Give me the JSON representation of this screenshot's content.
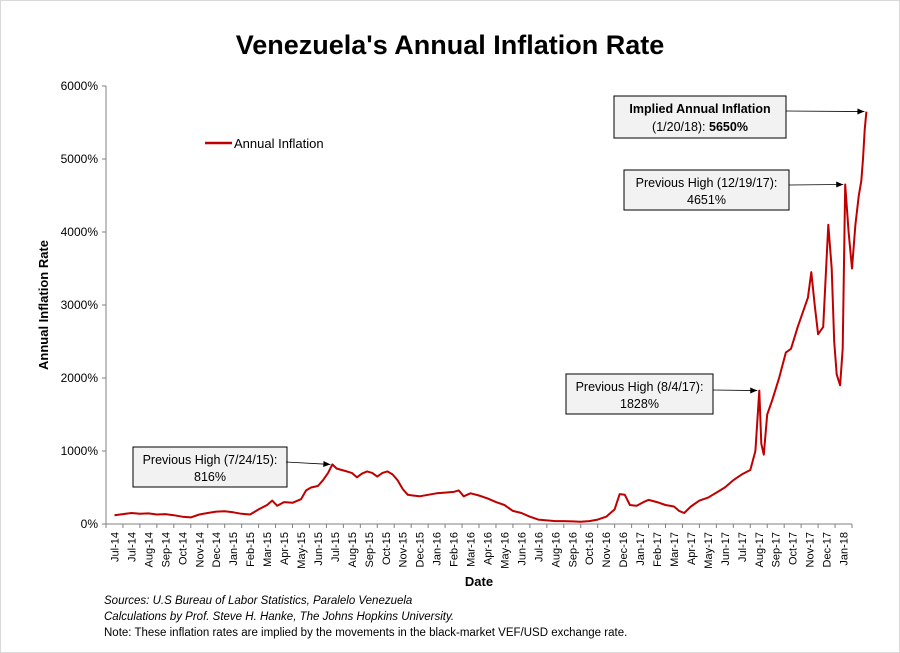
{
  "chart_data": {
    "type": "line",
    "title": "Venezuela's Annual Inflation Rate",
    "xlabel": "Date",
    "ylabel": "Annual Inflation Rate",
    "ylim": [
      0,
      6000
    ],
    "yticks": [
      "0%",
      "1000%",
      "2000%",
      "3000%",
      "4000%",
      "5000%",
      "6000%"
    ],
    "ytick_values": [
      0,
      1000,
      2000,
      3000,
      4000,
      5000,
      6000
    ],
    "xticks": [
      "Jul-14",
      "Jul-14",
      "Aug-14",
      "Sep-14",
      "Oct-14",
      "Nov-14",
      "Dec-14",
      "Jan-15",
      "Feb-15",
      "Mar-15",
      "Apr-15",
      "May-15",
      "Jun-15",
      "Jul-15",
      "Aug-15",
      "Sep-15",
      "Oct-15",
      "Nov-15",
      "Dec-15",
      "Jan-16",
      "Feb-16",
      "Mar-16",
      "Apr-16",
      "May-16",
      "Jun-16",
      "Jul-16",
      "Aug-16",
      "Sep-16",
      "Oct-16",
      "Nov-16",
      "Dec-16",
      "Jan-17",
      "Feb-17",
      "Mar-17",
      "Apr-17",
      "May-17",
      "Jun-17",
      "Jul-17",
      "Aug-17",
      "Sep-17",
      "Oct-17",
      "Nov-17",
      "Dec-17",
      "Jan-18"
    ],
    "legend": {
      "label": "Annual Inflation",
      "position": "top-left"
    },
    "series": [
      {
        "name": "Annual Inflation",
        "color": "#c00000",
        "points": [
          [
            0,
            120
          ],
          [
            0.5,
            135
          ],
          [
            1,
            150
          ],
          [
            1.5,
            140
          ],
          [
            2,
            145
          ],
          [
            2.5,
            130
          ],
          [
            3,
            135
          ],
          [
            3.5,
            120
          ],
          [
            4,
            100
          ],
          [
            4.5,
            90
          ],
          [
            5,
            130
          ],
          [
            5.5,
            150
          ],
          [
            6,
            170
          ],
          [
            6.5,
            175
          ],
          [
            7,
            160
          ],
          [
            7.5,
            140
          ],
          [
            8,
            130
          ],
          [
            8.5,
            200
          ],
          [
            9,
            260
          ],
          [
            9.3,
            320
          ],
          [
            9.6,
            250
          ],
          [
            10,
            300
          ],
          [
            10.5,
            290
          ],
          [
            11,
            340
          ],
          [
            11.3,
            460
          ],
          [
            11.6,
            500
          ],
          [
            12,
            520
          ],
          [
            12.3,
            600
          ],
          [
            12.6,
            700
          ],
          [
            12.85,
            816
          ],
          [
            13.1,
            760
          ],
          [
            13.4,
            740
          ],
          [
            13.7,
            720
          ],
          [
            14,
            700
          ],
          [
            14.3,
            640
          ],
          [
            14.6,
            690
          ],
          [
            14.9,
            720
          ],
          [
            15.2,
            700
          ],
          [
            15.5,
            650
          ],
          [
            15.8,
            700
          ],
          [
            16.1,
            720
          ],
          [
            16.4,
            680
          ],
          [
            16.7,
            600
          ],
          [
            17,
            480
          ],
          [
            17.3,
            400
          ],
          [
            17.6,
            390
          ],
          [
            18,
            380
          ],
          [
            18.5,
            400
          ],
          [
            19,
            420
          ],
          [
            19.5,
            430
          ],
          [
            20,
            440
          ],
          [
            20.3,
            460
          ],
          [
            20.6,
            380
          ],
          [
            21,
            420
          ],
          [
            21.5,
            390
          ],
          [
            22,
            350
          ],
          [
            22.5,
            300
          ],
          [
            23,
            260
          ],
          [
            23.5,
            180
          ],
          [
            24,
            150
          ],
          [
            24.5,
            100
          ],
          [
            25,
            60
          ],
          [
            25.5,
            50
          ],
          [
            26,
            40
          ],
          [
            26.5,
            40
          ],
          [
            27,
            35
          ],
          [
            27.5,
            30
          ],
          [
            28,
            40
          ],
          [
            28.5,
            60
          ],
          [
            29,
            100
          ],
          [
            29.5,
            200
          ],
          [
            29.8,
            410
          ],
          [
            30.1,
            400
          ],
          [
            30.4,
            260
          ],
          [
            30.8,
            250
          ],
          [
            31.2,
            300
          ],
          [
            31.5,
            330
          ],
          [
            32,
            300
          ],
          [
            32.5,
            260
          ],
          [
            33,
            240
          ],
          [
            33.3,
            180
          ],
          [
            33.6,
            150
          ],
          [
            34,
            240
          ],
          [
            34.5,
            320
          ],
          [
            35,
            360
          ],
          [
            35.5,
            430
          ],
          [
            36,
            500
          ],
          [
            36.5,
            600
          ],
          [
            37,
            680
          ],
          [
            37.5,
            740
          ],
          [
            37.8,
            1000
          ],
          [
            38.03,
            1828
          ],
          [
            38.15,
            1100
          ],
          [
            38.3,
            950
          ],
          [
            38.5,
            1500
          ],
          [
            38.8,
            1700
          ],
          [
            39.2,
            2000
          ],
          [
            39.6,
            2350
          ],
          [
            39.9,
            2400
          ],
          [
            40.3,
            2700
          ],
          [
            40.6,
            2900
          ],
          [
            40.9,
            3100
          ],
          [
            41.1,
            3450
          ],
          [
            41.3,
            3000
          ],
          [
            41.5,
            2600
          ],
          [
            41.8,
            2700
          ],
          [
            42.1,
            4100
          ],
          [
            42.3,
            3500
          ],
          [
            42.45,
            2500
          ],
          [
            42.6,
            2050
          ],
          [
            42.8,
            1900
          ],
          [
            42.95,
            2400
          ],
          [
            43.1,
            4651
          ],
          [
            43.3,
            4000
          ],
          [
            43.5,
            3500
          ],
          [
            43.7,
            4100
          ],
          [
            43.9,
            4500
          ],
          [
            44.05,
            4700
          ],
          [
            44.15,
            5000
          ],
          [
            44.25,
            5400
          ],
          [
            44.35,
            5650
          ]
        ]
      }
    ],
    "annotations": [
      {
        "title": "Previous High (7/24/15):",
        "value": "816%",
        "x": 12.85,
        "y": 816
      },
      {
        "title": "Previous High (8/4/17):",
        "value": "1828%",
        "x": 38.03,
        "y": 1828
      },
      {
        "title": "Previous High (12/19/17):",
        "value": "4651%",
        "x": 43.1,
        "y": 4651
      },
      {
        "title": "Implied Annual Inflation",
        "date": "(1/20/18):",
        "value": "5650%",
        "x": 44.35,
        "y": 5650
      }
    ]
  },
  "notes": {
    "sources": "Sources: U.S Bureau of Labor Statistics, Paralelo Venezuela",
    "calculations": "Calculations by Prof. Steve H. Hanke, The Johns Hopkins University.",
    "note": "Note: These inflation rates are implied by the movements in the black-market VEF/USD exchange rate."
  }
}
